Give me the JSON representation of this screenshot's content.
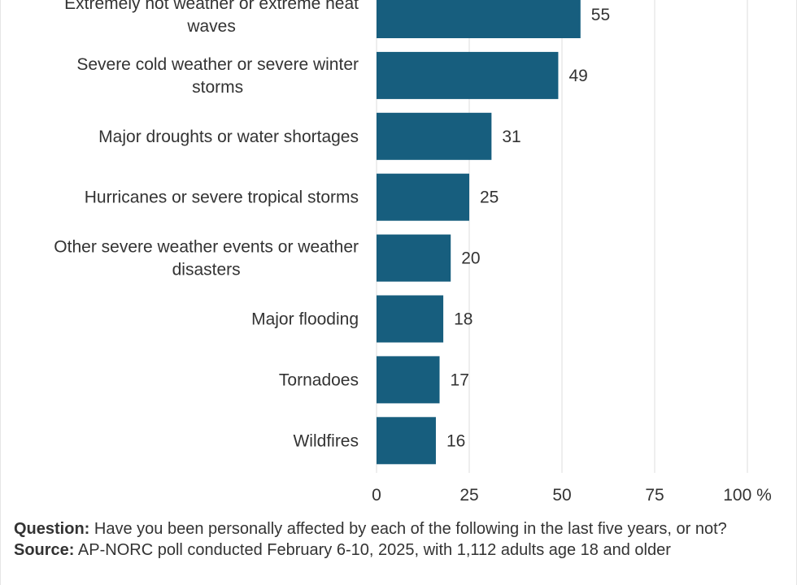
{
  "chart_data": {
    "type": "bar",
    "orientation": "horizontal",
    "categories": [
      "Extremely hot weather or extreme heat waves",
      "Severe cold weather or severe winter storms",
      "Major droughts or water shortages",
      "Hurricanes or severe tropical storms",
      "Other severe weather events or weather disasters",
      "Major flooding",
      "Tornadoes",
      "Wildfires"
    ],
    "category_lines": [
      [
        "Extremely hot weather or extreme heat",
        "waves"
      ],
      [
        "Severe cold weather or severe winter",
        "storms"
      ],
      [
        "Major droughts or water shortages"
      ],
      [
        "Hurricanes or severe tropical storms"
      ],
      [
        "Other severe weather events or weather",
        "disasters"
      ],
      [
        "Major flooding"
      ],
      [
        "Tornadoes"
      ],
      [
        "Wildfires"
      ]
    ],
    "values": [
      55,
      49,
      31,
      25,
      20,
      18,
      17,
      16
    ],
    "xlim": [
      0,
      100
    ],
    "xticks": [
      0,
      25,
      50,
      75,
      100
    ],
    "xtick_labels": [
      "0",
      "25",
      "50",
      "75",
      "100 %"
    ],
    "grid": true,
    "bar_color": "#175e7e"
  },
  "notes": {
    "question_label": "Question:",
    "question_text": "Have you been personally affected by each of the following in the last five years, or not?",
    "source_label": "Source:",
    "source_text": "AP-NORC poll conducted February 6-10, 2025, with 1,112 adults age 18 and older"
  }
}
